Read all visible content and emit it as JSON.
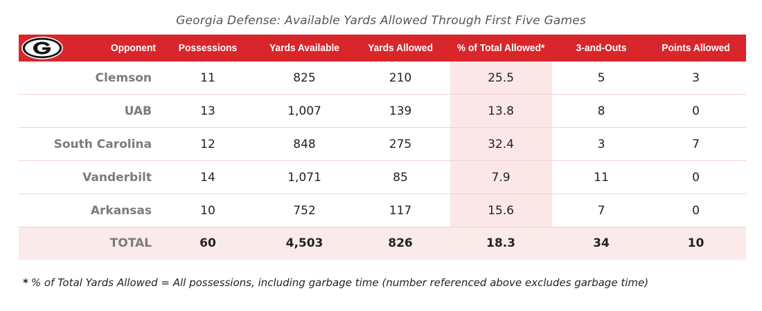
{
  "chart_data": {
    "type": "table",
    "title": "Georgia Defense: Available Yards Allowed Through First Five Games",
    "columns": [
      "Opponent",
      "Possessions",
      "Yards Available",
      "Yards Allowed",
      "% of Total Allowed*",
      "3-and-Outs",
      "Points Allowed"
    ],
    "rows": [
      [
        "Clemson",
        "11",
        "825",
        "210",
        "25.5",
        "5",
        "3"
      ],
      [
        "UAB",
        "13",
        "1,007",
        "139",
        "13.8",
        "8",
        "0"
      ],
      [
        "South Carolina",
        "12",
        "848",
        "275",
        "32.4",
        "3",
        "7"
      ],
      [
        "Vanderbilt",
        "14",
        "1,071",
        "85",
        "7.9",
        "11",
        "0"
      ],
      [
        "Arkansas",
        "10",
        "752",
        "117",
        "15.6",
        "7",
        "0"
      ]
    ],
    "total": [
      "TOTAL",
      "60",
      "4,503",
      "826",
      "18.3",
      "34",
      "10"
    ],
    "footnote_star": "*",
    "footnote": "% of Total Yards Allowed = All possessions, including garbage time (number referenced above excludes garbage time)",
    "colors": {
      "header": "#d8262b",
      "highlight": "#fbe7e7",
      "total_row": "#fbeaea",
      "total_highlight": "#f6d2d4"
    },
    "logo_icon": "georgia-g-logo"
  }
}
